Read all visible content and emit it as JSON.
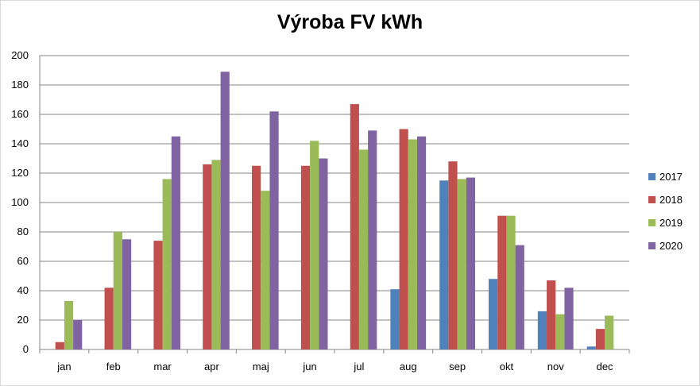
{
  "chart_data": {
    "type": "bar",
    "title": "Výroba FV kWh",
    "xlabel": "",
    "ylabel": "",
    "ylim": [
      0,
      200
    ],
    "yticks": [
      0,
      20,
      40,
      60,
      80,
      100,
      120,
      140,
      160,
      180,
      200
    ],
    "grid": true,
    "legend_position": "right",
    "categories": [
      "jan",
      "feb",
      "mar",
      "apr",
      "maj",
      "jun",
      "jul",
      "aug",
      "sep",
      "okt",
      "nov",
      "dec"
    ],
    "series": [
      {
        "name": "2017",
        "color": "#4f81bd",
        "values": [
          0,
          0,
          0,
          0,
          0,
          0,
          0,
          41,
          115,
          48,
          26,
          2
        ]
      },
      {
        "name": "2018",
        "color": "#c0504d",
        "values": [
          5,
          42,
          74,
          126,
          125,
          125,
          167,
          150,
          128,
          91,
          47,
          14
        ]
      },
      {
        "name": "2019",
        "color": "#9bbb59",
        "values": [
          33,
          80,
          116,
          129,
          108,
          142,
          136,
          143,
          116,
          91,
          24,
          23
        ]
      },
      {
        "name": "2020",
        "color": "#8064a2",
        "values": [
          20,
          75,
          145,
          189,
          162,
          130,
          149,
          145,
          117,
          71,
          42,
          0
        ]
      }
    ]
  }
}
